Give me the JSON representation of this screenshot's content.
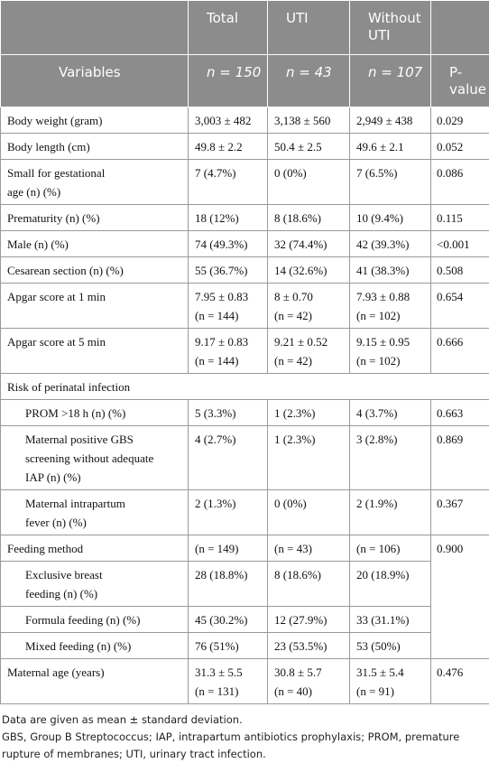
{
  "table": {
    "header": {
      "columns": [
        "Variables",
        "Total",
        "UTI",
        "Without\nUTI",
        "P-\nvalue"
      ],
      "n": [
        "n = 150",
        "n = 43",
        "n = 107"
      ]
    },
    "rows": [
      [
        "Body weight (gram)",
        "3,003 ± 482",
        "3,138 ± 560",
        "2,949 ± 438",
        "0.029"
      ],
      [
        "Body length (cm)",
        "49.8 ± 2.2",
        "50.4 ± 2.5",
        "49.6 ± 2.1",
        "0.052"
      ],
      [
        "Small for gestational\nage (n) (%)",
        "7 (4.7%)",
        "0 (0%)",
        "7 (6.5%)",
        "0.086"
      ],
      [
        "Prematurity (n) (%)",
        "18 (12%)",
        "8 (18.6%)",
        "10 (9.4%)",
        "0.115"
      ],
      [
        "Male (n) (%)",
        "74 (49.3%)",
        "32 (74.4%)",
        "42 (39.3%)",
        "<0.001"
      ],
      [
        "Cesarean section (n) (%)",
        "55 (36.7%)",
        "14 (32.6%)",
        "41 (38.3%)",
        "0.508"
      ],
      [
        "Apgar score at 1 min",
        "7.95 ± 0.83\n(n = 144)",
        "8 ± 0.70\n(n = 42)",
        "7.93 ± 0.88\n(n = 102)",
        "0.654"
      ],
      [
        "Apgar score at 5 min",
        "9.17 ± 0.83\n(n = 144)",
        "9.21 ± 0.52\n(n = 42)",
        "9.15 ± 0.95\n(n = 102)",
        "0.666"
      ],
      [
        "Risk of perinatal infection"
      ],
      [
        "PROM >18 h (n) (%)",
        "5 (3.3%)",
        "1 (2.3%)",
        "4 (3.7%)",
        "0.663"
      ],
      [
        "Maternal positive GBS\nscreening without adequate\nIAP (n) (%)",
        "4 (2.7%)",
        "1 (2.3%)",
        "3 (2.8%)",
        "0.869"
      ],
      [
        "Maternal intrapartum\nfever (n) (%)",
        "2 (1.3%)",
        "0 (0%)",
        "2 (1.9%)",
        "0.367"
      ],
      [
        "Feeding method",
        "(n = 149)",
        "(n = 43)",
        "(n = 106)",
        "0.900"
      ],
      [
        "Exclusive breast\nfeeding (n) (%)",
        "28 (18.8%)",
        "8 (18.6%)",
        "20 (18.9%)"
      ],
      [
        "Formula feeding (n) (%)",
        "45 (30.2%)",
        "12 (27.9%)",
        "33 (31.1%)"
      ],
      [
        "Mixed feeding (n) (%)",
        "76 (51%)",
        "23 (53.5%)",
        "53 (50%)"
      ],
      [
        "Maternal age (years)",
        "31.3 ± 5.5\n(n = 131)",
        "30.8 ± 5.7\n(n = 40)",
        "31.5 ± 5.4\n(n = 91)",
        "0.476"
      ]
    ],
    "notes": [
      "Data are given as mean ± standard deviation.",
      "GBS, Group B Streptococcus; IAP, intrapartum antibiotics prophylaxis; PROM, premature rupture of membranes; UTI, urinary tract infection."
    ]
  }
}
